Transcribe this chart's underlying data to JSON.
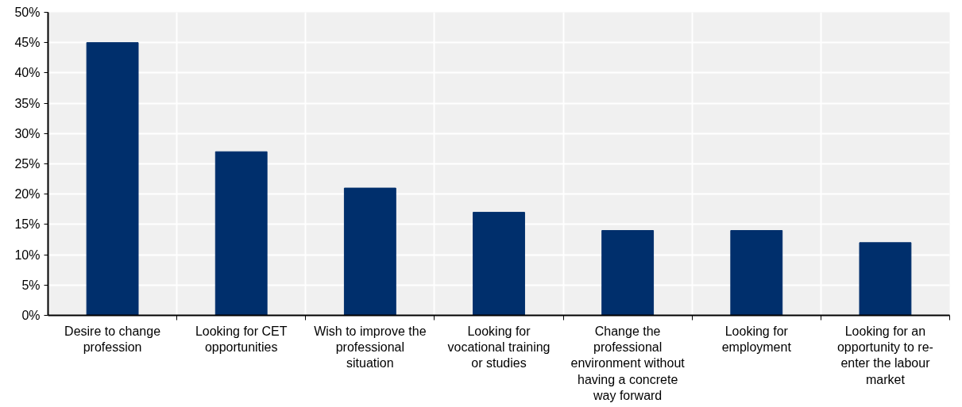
{
  "chart_data": {
    "type": "bar",
    "categories": [
      "Desire to change profession",
      "Looking for CET opportunities",
      "Wish to improve the professional situation",
      "Looking for vocational training or studies",
      "Change the professional environment without having a concrete way forward",
      "Looking for employment",
      "Looking for an opportunity to re-enter the labour market"
    ],
    "values": [
      45,
      27,
      21,
      17,
      14,
      14,
      12
    ],
    "color": "#002f6c",
    "ylim": [
      0,
      50
    ],
    "yticks": [
      {
        "value": 0,
        "label": "0%"
      },
      {
        "value": 5,
        "label": "5%"
      },
      {
        "value": 10,
        "label": "10%"
      },
      {
        "value": 15,
        "label": "15%"
      },
      {
        "value": 20,
        "label": "20%"
      },
      {
        "value": 25,
        "label": "25%"
      },
      {
        "value": 30,
        "label": "30%"
      },
      {
        "value": 35,
        "label": "35%"
      },
      {
        "value": 40,
        "label": "40%"
      },
      {
        "value": 45,
        "label": "45%"
      },
      {
        "value": 50,
        "label": "50%"
      }
    ],
    "grid": true
  }
}
